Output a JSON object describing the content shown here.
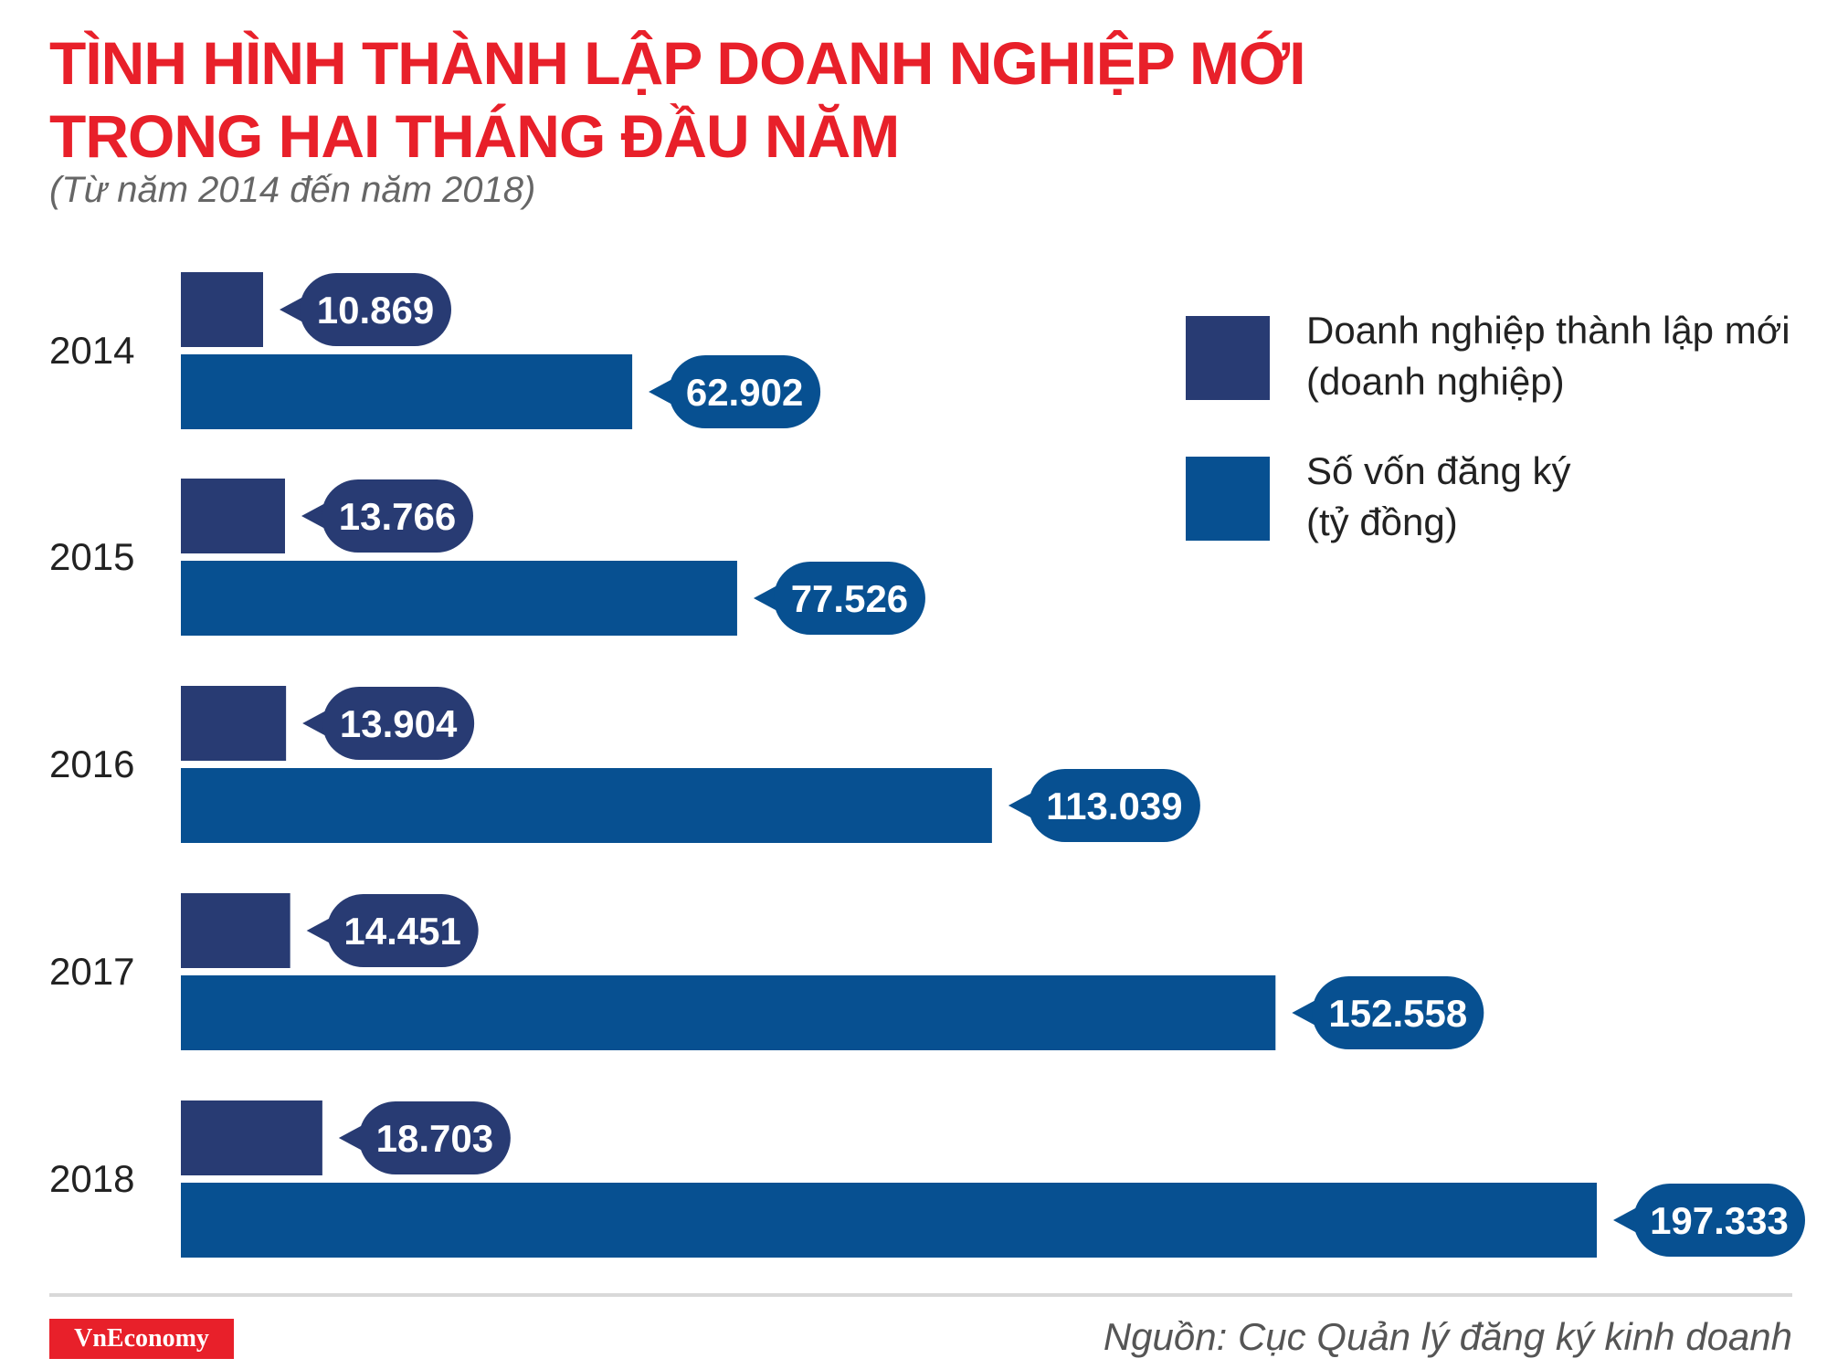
{
  "title": {
    "line1": "TÌNH HÌNH THÀNH LẬP DOANH NGHIỆP MỚI",
    "line2": "TRONG HAI THÁNG ĐẦU NĂM"
  },
  "subtitle": "(Từ năm 2014 đến năm 2018)",
  "colors": {
    "title": "#e8202a",
    "series_enterprises": "#283b73",
    "series_capital": "#075091"
  },
  "legend": {
    "enterprises": {
      "line1": "Doanh nghiệp thành lập mới",
      "line2": "(doanh nghiệp)"
    },
    "capital": {
      "line1": "Số vốn đăng ký",
      "line2": "(tỷ đồng)"
    }
  },
  "chart_data": {
    "type": "bar",
    "orientation": "horizontal",
    "categories": [
      "2014",
      "2015",
      "2016",
      "2017",
      "2018"
    ],
    "series": [
      {
        "name": "Doanh nghiệp thành lập mới (doanh nghiệp)",
        "values": [
          10869,
          13766,
          13904,
          14451,
          18703
        ],
        "labels": [
          "10.869",
          "13.766",
          "13.904",
          "14.451",
          "18.703"
        ]
      },
      {
        "name": "Số vốn đăng ký (tỷ đồng)",
        "values": [
          62902,
          77526,
          113039,
          152558,
          197333
        ],
        "labels": [
          "62.902",
          "77.526",
          "113.039",
          "152.558",
          "197.333"
        ]
      }
    ],
    "title": "TÌNH HÌNH THÀNH LẬP DOANH NGHIỆP MỚI TRONG HAI THÁNG ĐẦU NĂM",
    "xlabel": "",
    "ylabel": "",
    "legend_position": "top-right",
    "grid": false
  },
  "footer": {
    "logo": "VnEconomy",
    "source": "Nguồn: Cục Quản lý đăng ký kinh doanh"
  }
}
